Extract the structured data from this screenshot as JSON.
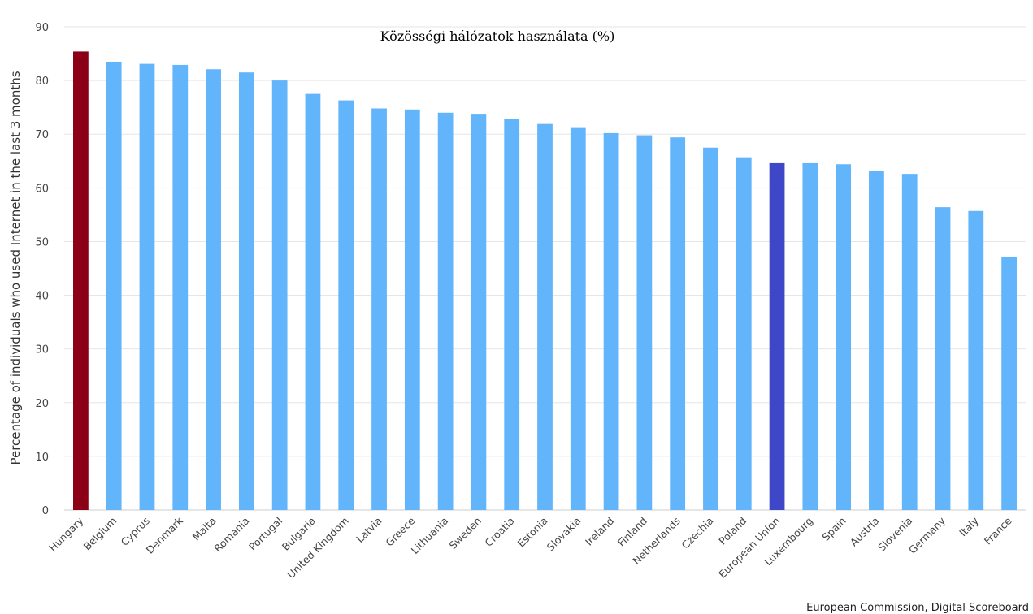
{
  "chart_data": {
    "type": "bar",
    "title": "Közösségi hálózatok használata (%)",
    "ylabel": "Percentage of individuals who used Internet in the last 3 months",
    "xlabel": "",
    "ylim": [
      0,
      90
    ],
    "yticks": [
      0,
      10,
      20,
      30,
      40,
      50,
      60,
      70,
      80,
      90
    ],
    "grid": true,
    "categories": [
      "Hungary",
      "Belgium",
      "Cyprus",
      "Denmark",
      "Malta",
      "Romania",
      "Portugal",
      "Bulgaria",
      "United Kingdom",
      "Latvia",
      "Greece",
      "Lithuania",
      "Sweden",
      "Croatia",
      "Estonia",
      "Slovakia",
      "Ireland",
      "Finland",
      "Netherlands",
      "Czechia",
      "Poland",
      "European Union",
      "Luxembourg",
      "Spain",
      "Austria",
      "Slovenia",
      "Germany",
      "Italy",
      "France"
    ],
    "values": [
      85.4,
      83.5,
      83.1,
      82.9,
      82.1,
      81.5,
      80.0,
      77.5,
      76.3,
      74.8,
      74.6,
      74.0,
      73.8,
      72.9,
      71.9,
      71.3,
      70.2,
      69.8,
      69.4,
      67.5,
      65.7,
      64.6,
      64.6,
      64.4,
      63.2,
      62.6,
      56.4,
      55.7,
      47.2
    ],
    "colors": {
      "default": "#62b5fb",
      "highlight": "#8b0017",
      "reference": "#3f47c9"
    },
    "highlight_category": "Hungary",
    "reference_category": "European Union"
  },
  "credit": "European Commission, Digital Scoreboard"
}
